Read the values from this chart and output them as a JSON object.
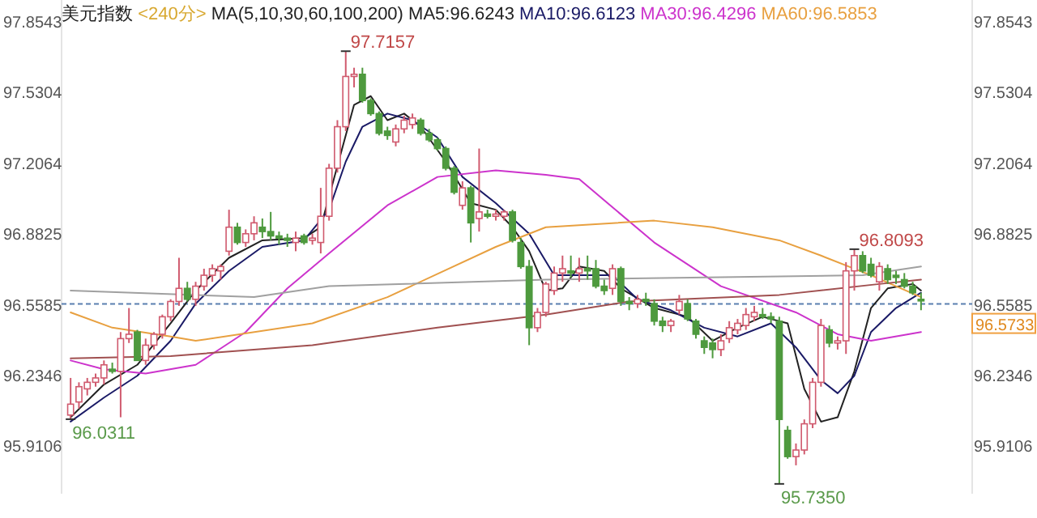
{
  "chart_data": {
    "type": "candlestick",
    "title": "美元指数",
    "subtitle": "<240分>",
    "legend": "top",
    "grid": false,
    "categories": [
      null,
      null,
      null,
      null,
      null,
      null,
      null,
      null,
      null,
      null,
      null,
      null,
      null,
      null,
      null,
      null,
      null,
      null,
      null,
      null,
      null,
      null,
      null,
      null,
      null,
      null,
      null,
      null,
      null,
      null,
      null,
      null,
      null,
      null,
      null,
      null,
      null,
      null,
      null,
      null,
      null,
      null,
      null,
      null,
      null,
      null,
      null,
      null,
      null,
      null,
      null,
      null,
      null,
      null,
      null,
      null,
      null,
      null,
      null,
      null,
      null,
      null,
      null,
      null,
      null,
      null,
      null,
      null,
      null,
      null,
      null,
      null,
      null,
      null,
      null,
      null,
      null,
      null,
      null,
      null,
      null,
      null,
      null,
      null,
      null,
      null,
      null,
      null,
      null,
      null,
      null,
      null,
      null,
      null,
      null,
      null,
      null,
      null,
      null,
      null,
      null,
      null,
      null
    ],
    "ohlc": [
      [
        96.05,
        96.22,
        96.03,
        96.1
      ],
      [
        96.11,
        96.2,
        96.08,
        96.18
      ],
      [
        96.17,
        96.22,
        96.14,
        96.2
      ],
      [
        96.2,
        96.24,
        96.18,
        96.22
      ],
      [
        96.22,
        96.3,
        96.19,
        96.28
      ],
      [
        96.26,
        96.29,
        96.24,
        96.25
      ],
      [
        96.25,
        96.43,
        96.04,
        96.4
      ],
      [
        96.4,
        96.54,
        96.38,
        96.42
      ],
      [
        96.43,
        96.44,
        96.3,
        96.3
      ],
      [
        96.3,
        96.4,
        96.28,
        96.37
      ],
      [
        96.37,
        96.43,
        96.35,
        96.42
      ],
      [
        96.42,
        96.51,
        96.4,
        96.5
      ],
      [
        96.5,
        96.58,
        96.48,
        96.57
      ],
      [
        96.57,
        96.77,
        96.55,
        96.63
      ],
      [
        96.63,
        96.66,
        96.57,
        96.58
      ],
      [
        96.58,
        96.66,
        96.55,
        96.64
      ],
      [
        96.64,
        96.72,
        96.62,
        96.69
      ],
      [
        96.69,
        96.74,
        96.66,
        96.72
      ],
      [
        96.71,
        96.74,
        96.67,
        96.73
      ],
      [
        96.8,
        96.99,
        96.78,
        96.91
      ],
      [
        96.91,
        96.93,
        96.83,
        96.84
      ],
      [
        96.84,
        96.9,
        96.82,
        96.88
      ],
      [
        96.88,
        96.96,
        96.85,
        96.93
      ],
      [
        96.91,
        96.95,
        96.86,
        96.89
      ],
      [
        96.89,
        96.98,
        96.85,
        96.87
      ],
      [
        96.87,
        96.89,
        96.83,
        96.86
      ],
      [
        96.86,
        96.88,
        96.82,
        96.85
      ],
      [
        96.84,
        96.89,
        96.8,
        96.86
      ],
      [
        96.87,
        96.88,
        96.83,
        96.84
      ],
      [
        96.85,
        96.88,
        96.83,
        96.86
      ],
      [
        96.84,
        97.09,
        96.79,
        96.96
      ],
      [
        96.96,
        97.2,
        96.94,
        97.18
      ],
      [
        97.18,
        97.4,
        97.16,
        97.37
      ],
      [
        97.37,
        97.7157,
        97.35,
        97.6
      ],
      [
        97.6,
        97.64,
        97.55,
        97.61
      ],
      [
        97.61,
        97.64,
        97.48,
        97.49
      ],
      [
        97.49,
        97.5,
        97.42,
        97.43
      ],
      [
        97.43,
        97.44,
        97.33,
        97.34
      ],
      [
        97.35,
        97.37,
        97.31,
        97.33
      ],
      [
        97.3,
        97.38,
        97.28,
        97.36
      ],
      [
        97.36,
        97.42,
        97.34,
        97.4
      ],
      [
        97.38,
        97.43,
        97.36,
        97.41
      ],
      [
        97.4,
        97.41,
        97.33,
        97.34
      ],
      [
        97.34,
        97.36,
        97.3,
        97.31
      ],
      [
        97.31,
        97.32,
        97.26,
        97.27
      ],
      [
        97.27,
        97.28,
        97.17,
        97.18
      ],
      [
        97.18,
        97.19,
        97.06,
        97.07
      ],
      [
        97.01,
        97.12,
        96.99,
        97.09
      ],
      [
        97.09,
        97.1,
        96.84,
        96.93
      ],
      [
        96.95,
        97.27,
        96.89,
        96.98
      ],
      [
        96.97,
        96.99,
        96.95,
        96.96
      ],
      [
        96.96,
        96.99,
        96.94,
        96.97
      ],
      [
        96.96,
        96.99,
        96.94,
        96.98
      ],
      [
        96.98,
        96.99,
        96.84,
        96.85
      ],
      [
        96.84,
        96.86,
        96.72,
        96.73
      ],
      [
        96.73,
        96.76,
        96.37,
        96.45
      ],
      [
        96.45,
        96.54,
        96.43,
        96.52
      ],
      [
        96.52,
        96.66,
        96.5,
        96.65
      ],
      [
        96.62,
        96.73,
        96.6,
        96.7
      ],
      [
        96.7,
        96.78,
        96.66,
        96.72
      ],
      [
        96.71,
        96.78,
        96.68,
        96.7
      ],
      [
        96.7,
        96.77,
        96.66,
        96.72
      ],
      [
        96.72,
        96.78,
        96.67,
        96.71
      ],
      [
        96.72,
        96.76,
        96.63,
        96.64
      ],
      [
        96.64,
        96.67,
        96.6,
        96.62
      ],
      [
        96.63,
        96.74,
        96.6,
        96.72
      ],
      [
        96.72,
        96.73,
        96.55,
        96.57
      ],
      [
        96.57,
        96.59,
        96.53,
        96.56
      ],
      [
        96.56,
        96.6,
        96.54,
        96.58
      ],
      [
        96.58,
        96.61,
        96.55,
        96.57
      ],
      [
        96.56,
        96.58,
        96.46,
        96.48
      ],
      [
        96.48,
        96.5,
        96.43,
        96.46
      ],
      [
        96.46,
        96.49,
        96.43,
        96.48
      ],
      [
        96.53,
        96.6,
        96.51,
        96.57
      ],
      [
        96.56,
        96.58,
        96.48,
        96.49
      ],
      [
        96.48,
        96.49,
        96.4,
        96.42
      ],
      [
        96.39,
        96.41,
        96.33,
        96.36
      ],
      [
        96.38,
        96.4,
        96.31,
        96.35
      ],
      [
        96.35,
        96.42,
        96.32,
        96.39
      ],
      [
        96.4,
        96.48,
        96.38,
        96.45
      ],
      [
        96.44,
        96.49,
        96.42,
        96.47
      ],
      [
        96.46,
        96.54,
        96.44,
        96.51
      ],
      [
        96.5,
        96.55,
        96.48,
        96.52
      ],
      [
        96.51,
        96.54,
        96.49,
        96.5
      ],
      [
        96.5,
        96.52,
        96.47,
        96.49
      ],
      [
        96.48,
        96.5,
        95.735,
        96.03
      ],
      [
        95.98,
        96.0,
        95.85,
        95.86
      ],
      [
        95.86,
        95.92,
        95.82,
        95.89
      ],
      [
        95.89,
        96.03,
        95.87,
        96.01
      ],
      [
        96.01,
        96.22,
        95.99,
        96.2
      ],
      [
        96.2,
        96.49,
        96.18,
        96.46
      ],
      [
        96.44,
        96.46,
        96.36,
        96.38
      ],
      [
        96.38,
        96.41,
        96.35,
        96.39
      ],
      [
        96.39,
        96.75,
        96.33,
        96.71
      ],
      [
        96.71,
        96.8093,
        96.62,
        96.78
      ],
      [
        96.78,
        96.8,
        96.7,
        96.71
      ],
      [
        96.74,
        96.77,
        96.68,
        96.69
      ],
      [
        96.66,
        96.75,
        96.62,
        96.73
      ],
      [
        96.72,
        96.74,
        96.65,
        96.67
      ],
      [
        96.69,
        96.71,
        96.65,
        96.68
      ],
      [
        96.67,
        96.7,
        96.63,
        96.64
      ],
      [
        96.64,
        96.66,
        96.6,
        96.61
      ],
      [
        96.58,
        96.61,
        96.53,
        96.5733
      ]
    ],
    "series": [
      {
        "name": "MA5:96.6243",
        "type": "line",
        "color": "#222222",
        "values": [
          96.04,
          null,
          null,
          null,
          96.19,
          null,
          null,
          null,
          96.28,
          null,
          null,
          null,
          96.47,
          null,
          null,
          96.62,
          null,
          null,
          null,
          96.77,
          null,
          null,
          null,
          96.85,
          null,
          null,
          null,
          null,
          96.86,
          null,
          96.91,
          null,
          null,
          null,
          97.47,
          null,
          97.51,
          null,
          97.4,
          null,
          97.43,
          null,
          97.37,
          null,
          null,
          97.21,
          null,
          null,
          97.02,
          null,
          null,
          96.99,
          null,
          96.91,
          null,
          96.8,
          null,
          96.62,
          null,
          96.63,
          null,
          96.73,
          null,
          null,
          96.71,
          null,
          96.63,
          null,
          null,
          null,
          96.54,
          null,
          null,
          null,
          96.5,
          null,
          null,
          96.39,
          null,
          null,
          96.45,
          null,
          null,
          96.5,
          null,
          null,
          96.47,
          null,
          96.17,
          null,
          96.02,
          null,
          96.04,
          null,
          96.25,
          null,
          96.54,
          null,
          96.63,
          null,
          null,
          96.65,
          96.62
        ]
      },
      {
        "name": "MA10:96.6123",
        "type": "line",
        "color": "#1a1a66",
        "values": [
          96.02,
          null,
          null,
          null,
          96.13,
          null,
          null,
          null,
          96.23,
          null,
          null,
          null,
          96.39,
          null,
          null,
          96.56,
          null,
          null,
          null,
          96.71,
          null,
          null,
          null,
          96.82,
          null,
          null,
          null,
          null,
          96.85,
          null,
          null,
          96.99,
          null,
          97.21,
          null,
          97.37,
          null,
          null,
          97.43,
          null,
          null,
          97.4,
          null,
          null,
          97.32,
          null,
          null,
          97.14,
          null,
          null,
          null,
          97.02,
          null,
          null,
          null,
          96.88,
          null,
          null,
          96.69,
          null,
          null,
          96.69,
          null,
          null,
          null,
          96.69,
          null,
          null,
          96.58,
          null,
          null,
          null,
          96.53,
          null,
          null,
          null,
          96.45,
          null,
          null,
          null,
          96.41,
          null,
          null,
          null,
          96.47,
          null,
          null,
          96.36,
          null,
          null,
          96.21,
          null,
          96.15,
          null,
          96.23,
          null,
          96.43,
          null,
          null,
          96.54,
          null,
          null,
          96.61
        ]
      },
      {
        "name": "MA30:96.4296",
        "type": "line",
        "color": "#cc33cc",
        "values": [
          96.3,
          null,
          null,
          null,
          96.26,
          null,
          null,
          null,
          null,
          96.24,
          null,
          null,
          null,
          null,
          null,
          96.28,
          null,
          null,
          null,
          null,
          null,
          96.43,
          null,
          null,
          null,
          null,
          96.63,
          null,
          null,
          null,
          null,
          96.79,
          null,
          null,
          null,
          null,
          null,
          null,
          97.01,
          null,
          null,
          null,
          null,
          null,
          97.14,
          null,
          null,
          null,
          null,
          null,
          null,
          97.17,
          null,
          null,
          null,
          null,
          null,
          97.15,
          null,
          null,
          null,
          97.13,
          null,
          null,
          null,
          null,
          null,
          null,
          null,
          null,
          96.84,
          null,
          null,
          null,
          null,
          null,
          null,
          null,
          96.64,
          null,
          null,
          null,
          null,
          null,
          null,
          null,
          null,
          96.52,
          null,
          null,
          null,
          null,
          96.42,
          null,
          null,
          null,
          96.39,
          null,
          null,
          null,
          null,
          null,
          96.43
        ]
      },
      {
        "name": "MA60:96.5853",
        "type": "line",
        "color": "#e8a040",
        "values": [
          96.52,
          null,
          null,
          null,
          null,
          96.45,
          null,
          null,
          null,
          null,
          null,
          null,
          96.41,
          null,
          null,
          96.39,
          null,
          null,
          null,
          null,
          null,
          null,
          null,
          null,
          null,
          null,
          null,
          null,
          null,
          96.47,
          null,
          null,
          null,
          null,
          null,
          null,
          null,
          null,
          96.59,
          null,
          null,
          null,
          null,
          null,
          null,
          null,
          null,
          null,
          null,
          null,
          null,
          96.82,
          null,
          null,
          null,
          null,
          null,
          96.91,
          null,
          null,
          null,
          null,
          null,
          null,
          null,
          null,
          null,
          null,
          null,
          null,
          96.94,
          null,
          null,
          null,
          null,
          null,
          null,
          96.91,
          null,
          null,
          null,
          null,
          null,
          null,
          null,
          96.85,
          null,
          null,
          null,
          null,
          96.78,
          null,
          null,
          null,
          null,
          null,
          96.69,
          null,
          null,
          null,
          null,
          null,
          96.59
        ]
      },
      {
        "type": "line",
        "color": "#a0a0a0",
        "values": [
          96.62,
          null,
          null,
          null,
          null,
          null,
          null,
          null,
          null,
          null,
          null,
          null,
          null,
          null,
          null,
          null,
          null,
          null,
          null,
          null,
          null,
          null,
          96.59,
          null,
          null,
          null,
          null,
          null,
          null,
          null,
          null,
          96.64,
          null,
          null,
          null,
          null,
          null,
          null,
          null,
          null,
          null,
          null,
          null,
          null,
          null,
          null,
          null,
          null,
          null,
          null,
          null,
          null,
          null,
          null,
          null,
          null,
          null,
          96.67,
          null,
          null,
          null,
          null,
          null,
          null,
          null,
          null,
          null,
          null,
          null,
          null,
          null,
          null,
          null,
          null,
          null,
          null,
          null,
          null,
          null,
          null,
          null,
          null,
          null,
          null,
          null,
          null,
          null,
          null,
          null,
          null,
          null,
          null,
          null,
          null,
          null,
          96.69,
          null,
          null,
          null,
          null,
          null,
          null,
          96.73
        ]
      },
      {
        "type": "line",
        "color": "#a05050",
        "values": [
          96.31,
          null,
          null,
          null,
          null,
          null,
          null,
          null,
          null,
          null,
          null,
          null,
          96.32,
          null,
          null,
          null,
          null,
          null,
          null,
          null,
          null,
          null,
          null,
          null,
          null,
          null,
          null,
          null,
          null,
          96.37,
          null,
          null,
          null,
          null,
          null,
          null,
          null,
          null,
          null,
          null,
          null,
          null,
          null,
          null,
          96.45,
          null,
          null,
          null,
          null,
          null,
          null,
          null,
          null,
          null,
          null,
          null,
          null,
          96.51,
          null,
          null,
          null,
          null,
          null,
          null,
          null,
          null,
          null,
          96.57,
          null,
          null,
          null,
          null,
          null,
          null,
          null,
          null,
          null,
          null,
          null,
          null,
          null,
          null,
          null,
          null,
          null,
          96.6,
          null,
          null,
          null,
          null,
          null,
          null,
          null,
          null,
          null,
          null,
          null,
          96.65,
          null,
          null,
          null,
          null,
          96.67
        ]
      }
    ],
    "ylim": [
      95.69,
      97.95
    ],
    "yticks": [
      95.9106,
      96.2346,
      96.5585,
      96.8825,
      97.2064,
      97.5304,
      97.8543
    ],
    "y2lim": [
      95.69,
      97.95
    ],
    "y2ticks": [
      95.9106,
      96.2346,
      96.5585,
      96.8825,
      97.2064,
      97.5304,
      97.8543
    ],
    "ref_lines": [
      {
        "axis": "y",
        "value": 96.5585,
        "color": "#5a7fb0",
        "line_style": "dashed"
      }
    ],
    "annotations": [
      "MA(5,10,30,60,100,200)",
      "97.7157",
      "96.0311",
      "96.8093",
      "95.7350",
      "96.5733"
    ]
  }
}
